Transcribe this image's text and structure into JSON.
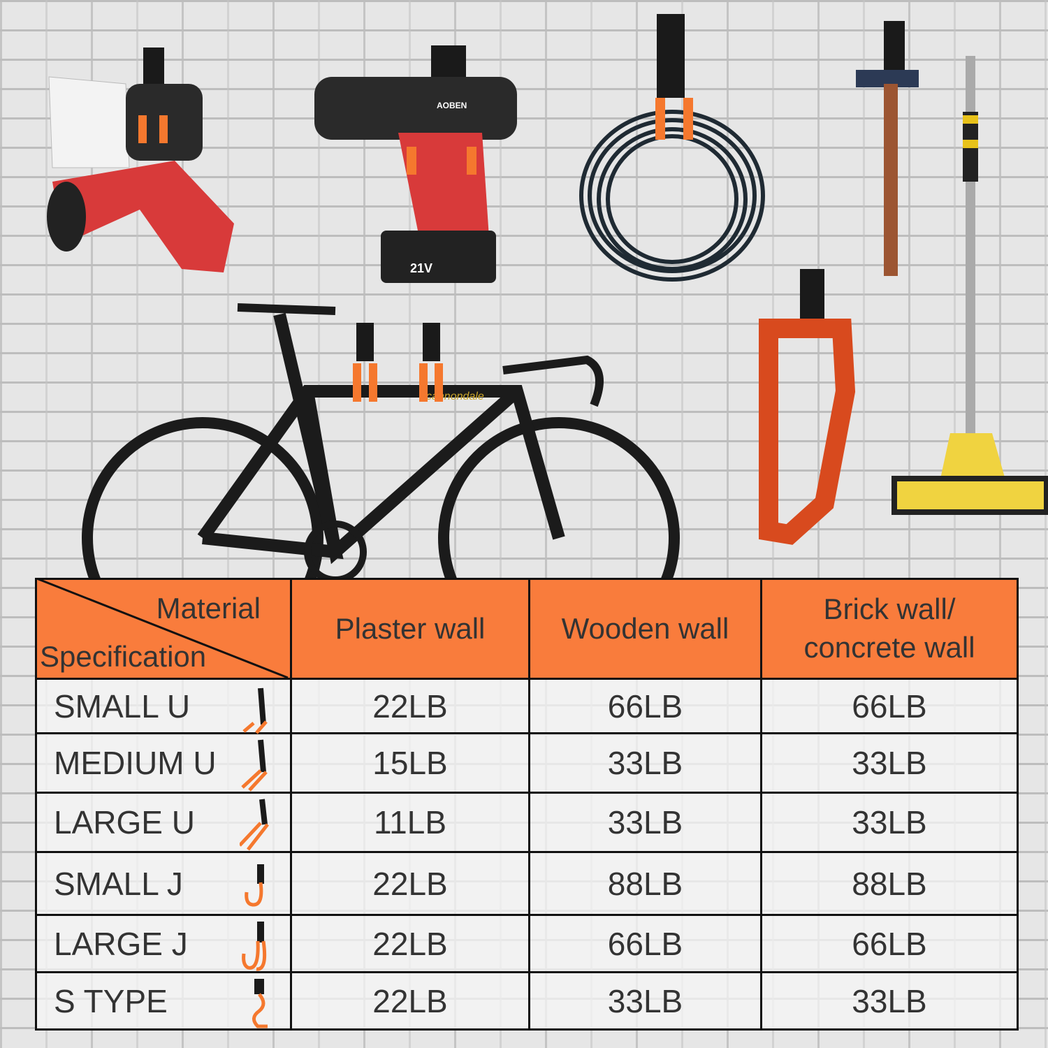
{
  "scene": {
    "drill_brand": "AOBEN",
    "battery_label": "21V",
    "bike_brand": "cannondale",
    "colors": {
      "header": "#f97c3c",
      "hook_orange": "#f5782e",
      "hook_black": "#1a1a1a",
      "wall": "#e6e6e6"
    }
  },
  "table": {
    "corner_top": "Material",
    "corner_bottom": "Specification",
    "columns": [
      "Plaster wall",
      "Wooden wall",
      "Brick wall/\nconcrete wall"
    ],
    "column_lines": [
      [
        "Plaster wall"
      ],
      [
        "Wooden wall"
      ],
      [
        "Brick wall/",
        "concrete wall"
      ]
    ],
    "rows": [
      {
        "spec": "SMALL U",
        "icon": "small-u-hook-icon",
        "values": [
          "22LB",
          "66LB",
          "66LB"
        ]
      },
      {
        "spec": "MEDIUM U",
        "icon": "medium-u-hook-icon",
        "values": [
          "15LB",
          "33LB",
          "33LB"
        ]
      },
      {
        "spec": "LARGE U",
        "icon": "large-u-hook-icon",
        "values": [
          "11LB",
          "33LB",
          "33LB"
        ]
      },
      {
        "spec": "SMALL J",
        "icon": "small-j-hook-icon",
        "values": [
          "22LB",
          "88LB",
          "88LB"
        ]
      },
      {
        "spec": "LARGE J",
        "icon": "large-j-hook-icon",
        "values": [
          "22LB",
          "66LB",
          "66LB"
        ]
      },
      {
        "spec": "S TYPE",
        "icon": "s-type-hook-icon",
        "values": [
          "22LB",
          "33LB",
          "33LB"
        ]
      }
    ]
  }
}
